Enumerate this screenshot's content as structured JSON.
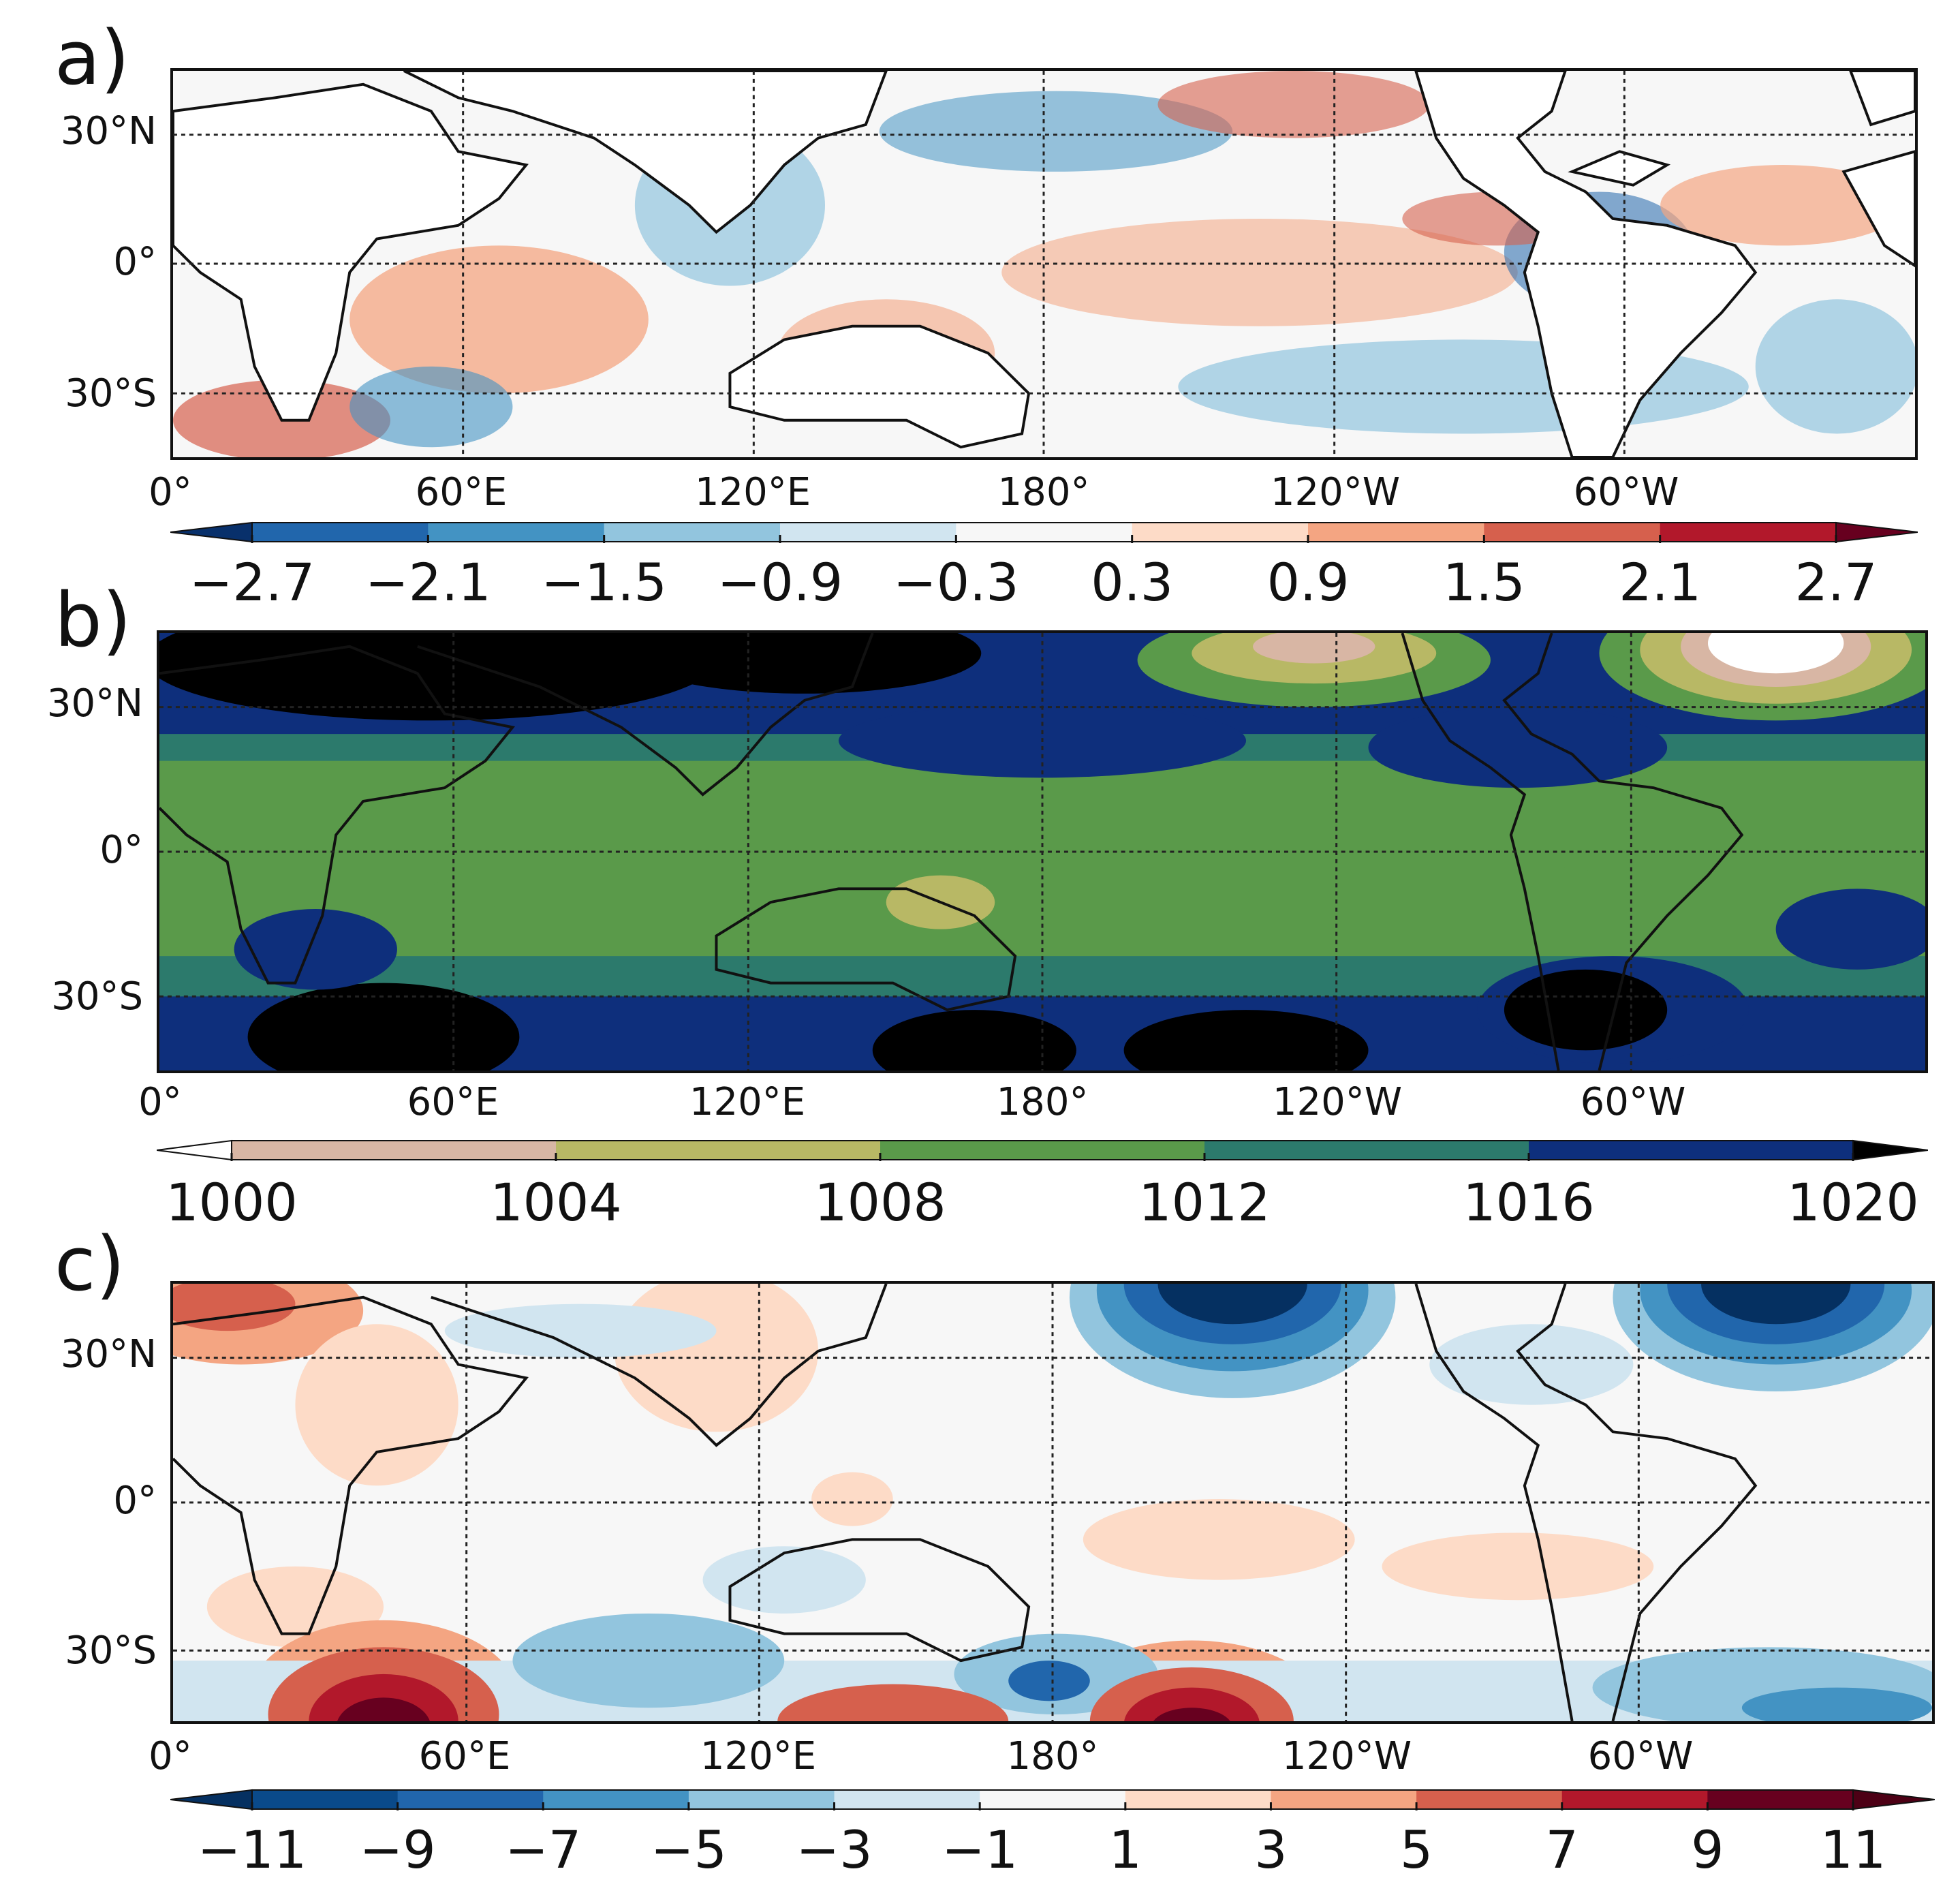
{
  "panels": [
    {
      "label": "a)",
      "lat_labels": [
        "30°N",
        "0°",
        "30°S"
      ],
      "lon_labels": [
        "0°",
        "60°E",
        "120°E",
        "180°",
        "120°W",
        "60°W"
      ],
      "colorbar": {
        "ticks": [
          "−2.7",
          "−2.1",
          "−1.5",
          "−0.9",
          "−0.3",
          "0.3",
          "0.9",
          "1.5",
          "2.1",
          "2.7"
        ],
        "colors": [
          "#08306b",
          "#2166ac",
          "#4393c3",
          "#92c5de",
          "#d1e5f0",
          "#f7f7f7",
          "#fddbc7",
          "#f4a582",
          "#d6604d",
          "#b2182b",
          "#67001f"
        ]
      }
    },
    {
      "label": "b)",
      "lat_labels": [
        "30°N",
        "0°",
        "30°S"
      ],
      "lon_labels": [
        "0°",
        "60°E",
        "120°E",
        "180°",
        "120°W",
        "60°W"
      ],
      "colorbar": {
        "ticks": [
          "1000",
          "1004",
          "1008",
          "1012",
          "1016",
          "1020"
        ],
        "colors": [
          "#ffffff",
          "#d8b6a4",
          "#b8b865",
          "#5a9a4a",
          "#2c7a6c",
          "#0e2f7c",
          "#000000"
        ]
      }
    },
    {
      "label": "c)",
      "lat_labels": [
        "30°N",
        "0°",
        "30°S"
      ],
      "lon_labels": [
        "0°",
        "60°E",
        "120°E",
        "180°",
        "120°W",
        "60°W"
      ],
      "colorbar": {
        "ticks": [
          "−11",
          "−9",
          "−7",
          "−5",
          "−3",
          "−1",
          "1",
          "3",
          "5",
          "7",
          "9",
          "11"
        ],
        "colors": [
          "#053061",
          "#0a4a8a",
          "#2166ac",
          "#4393c3",
          "#92c5de",
          "#d1e5f0",
          "#f7f7f7",
          "#fddbc7",
          "#f4a582",
          "#d6604d",
          "#b2182b",
          "#67001f",
          "#4d0015"
        ]
      }
    }
  ]
}
